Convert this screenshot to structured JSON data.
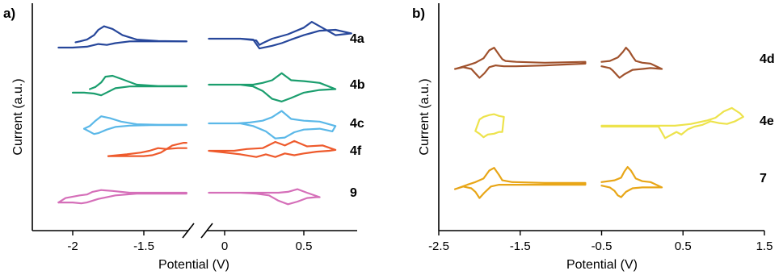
{
  "chart_data": [
    {
      "panel_label": "a)",
      "type": "line",
      "xlabel": "Potential (V)",
      "ylabel": "Current (a.u.)",
      "x_ticks": [
        "-2",
        "-1.5",
        "0",
        "0.5"
      ],
      "x_tick_values": [
        -2,
        -1.5,
        0,
        0.5
      ],
      "xlim": [
        -2.3,
        0.8
      ],
      "broken_axis": [
        -1.2,
        -0.1
      ],
      "series": [
        {
          "name": "4a",
          "color": "#27479b",
          "cathodic": {
            "x": [
              -1.98,
              -1.95,
              -1.9,
              -1.85,
              -1.82,
              -1.78,
              -1.72,
              -1.65,
              -1.55,
              -1.4,
              -1.2
            ],
            "y": [
              0.08,
              0.06,
              0.02,
              -0.08,
              -0.2,
              -0.28,
              -0.22,
              -0.08,
              0.02,
              0.05,
              0.06
            ]
          },
          "anodic": {
            "x": [
              -2.1,
              -2.0,
              -1.9,
              -1.82,
              -1.76,
              -1.7,
              -1.6,
              -1.45,
              -1.2
            ],
            "y": [
              0.2,
              0.2,
              0.18,
              0.12,
              0.14,
              0.1,
              0.06,
              0.06,
              0.06
            ]
          },
          "right": {
            "x": [
              -0.1,
              0.1,
              0.18,
              0.22,
              0.3,
              0.36,
              0.42,
              0.5,
              0.6,
              0.7,
              0.8,
              0.7,
              0.6,
              0.55,
              0.5,
              0.4,
              0.3,
              0.24,
              0.22,
              0.2,
              0.1,
              -0.1
            ],
            "y": [
              0.0,
              0.0,
              0.02,
              0.22,
              0.16,
              0.1,
              0.02,
              -0.08,
              -0.18,
              -0.2,
              -0.12,
              -0.08,
              -0.28,
              -0.38,
              -0.25,
              -0.1,
              0.0,
              0.1,
              0.14,
              0.04,
              0.0,
              0.0
            ]
          }
        },
        {
          "name": "4b",
          "color": "#1b9e6e",
          "cathodic": {
            "x": [
              -1.88,
              -1.84,
              -1.8,
              -1.77,
              -1.72,
              -1.65,
              -1.55,
              -1.4,
              -1.2
            ],
            "y": [
              0.1,
              0.05,
              -0.05,
              -0.18,
              -0.2,
              -0.12,
              0.0,
              0.03,
              0.03
            ]
          },
          "anodic": {
            "x": [
              -2.0,
              -1.92,
              -1.85,
              -1.8,
              -1.75,
              -1.7,
              -1.6,
              -1.45,
              -1.2
            ],
            "y": [
              0.18,
              0.18,
              0.2,
              0.24,
              0.16,
              0.08,
              0.04,
              0.04,
              0.04
            ]
          },
          "right": {
            "x": [
              -0.1,
              0.1,
              0.18,
              0.24,
              0.3,
              0.36,
              0.42,
              0.5,
              0.6,
              0.7,
              0.6,
              0.5,
              0.42,
              0.36,
              0.3,
              0.24,
              0.18,
              0.1,
              -0.1
            ],
            "y": [
              0.0,
              0.0,
              0.04,
              0.14,
              0.32,
              0.38,
              0.3,
              0.18,
              0.12,
              0.1,
              -0.04,
              -0.08,
              -0.1,
              -0.26,
              -0.1,
              -0.04,
              0.0,
              0.0,
              0.0
            ]
          }
        },
        {
          "name": "4c",
          "color": "#5bb8e8",
          "cathodic": {
            "x": [
              -1.92,
              -1.88,
              -1.84,
              -1.8,
              -1.74,
              -1.66,
              -1.55,
              -1.4,
              -1.2
            ],
            "y": [
              0.12,
              0.06,
              -0.06,
              -0.16,
              -0.12,
              -0.04,
              0.02,
              0.03,
              0.03
            ]
          },
          "anodic": {
            "x": [
              -1.92,
              -1.85,
              -1.82,
              -1.76,
              -1.7,
              -1.6,
              -1.45,
              -1.2
            ],
            "y": [
              0.12,
              0.24,
              0.22,
              0.14,
              0.08,
              0.05,
              0.04,
              0.04
            ]
          },
          "right": {
            "x": [
              -0.1,
              0.1,
              0.18,
              0.26,
              0.32,
              0.38,
              0.44,
              0.5,
              0.6,
              0.68,
              0.7,
              0.6,
              0.5,
              0.42,
              0.36,
              0.3,
              0.24,
              0.16,
              0.08,
              -0.1
            ],
            "y": [
              0.0,
              0.0,
              0.06,
              0.18,
              0.34,
              0.32,
              0.2,
              0.14,
              0.12,
              0.18,
              0.06,
              -0.04,
              -0.06,
              -0.1,
              -0.28,
              -0.14,
              -0.06,
              -0.02,
              0.0,
              0.0
            ]
          }
        },
        {
          "name": "4f",
          "color": "#ee5a2c",
          "cathodic": {
            "x": [
              -1.75,
              -1.6,
              -1.5,
              -1.44,
              -1.38,
              -1.3,
              -1.22,
              -1.2
            ],
            "y": [
              0.12,
              0.12,
              0.12,
              0.1,
              0.04,
              -0.12,
              -0.18,
              -0.18
            ]
          },
          "anodic": {
            "x": [
              -1.75,
              -1.62,
              -1.52,
              -1.46,
              -1.4,
              -1.34,
              -1.26,
              -1.2
            ],
            "y": [
              0.12,
              0.08,
              0.04,
              0.0,
              -0.06,
              -0.04,
              -0.06,
              -0.06
            ]
          },
          "right": {
            "x": [
              -0.1,
              0.0,
              0.1,
              0.2,
              0.26,
              0.32,
              0.38,
              0.44,
              0.5,
              0.58,
              0.66,
              0.7,
              0.62,
              0.52,
              0.44,
              0.38,
              0.32,
              0.24,
              0.14,
              0.06,
              -0.1
            ],
            "y": [
              0.0,
              0.04,
              0.08,
              0.14,
              0.08,
              0.14,
              0.06,
              0.1,
              0.06,
              0.02,
              0.0,
              -0.02,
              -0.12,
              -0.1,
              -0.22,
              -0.12,
              -0.2,
              -0.06,
              -0.04,
              0.0,
              0.0
            ]
          }
        },
        {
          "name": "9",
          "color": "#d56fb9",
          "cathodic": {
            "x": [
              -2.1,
              -2.05,
              -1.95,
              -1.9,
              -1.86,
              -1.8,
              -1.72,
              -1.6,
              -1.45,
              -1.2
            ],
            "y": [
              0.22,
              0.12,
              0.06,
              0.04,
              -0.02,
              -0.06,
              -0.04,
              0.0,
              0.0,
              0.0
            ]
          },
          "anodic": {
            "x": [
              -2.1,
              -2.0,
              -1.94,
              -1.9,
              -1.82,
              -1.7,
              -1.55,
              -1.2
            ],
            "y": [
              0.22,
              0.22,
              0.24,
              0.22,
              0.14,
              0.06,
              0.02,
              0.02
            ]
          },
          "right": {
            "x": [
              -0.1,
              0.1,
              0.2,
              0.28,
              0.34,
              0.4,
              0.46,
              0.52,
              0.58,
              0.6,
              0.52,
              0.46,
              0.4,
              0.34,
              0.28,
              0.2,
              0.1,
              -0.1
            ],
            "y": [
              0.0,
              0.0,
              0.02,
              0.06,
              0.18,
              0.26,
              0.2,
              0.12,
              0.1,
              0.1,
              0.0,
              -0.08,
              -0.02,
              0.0,
              0.0,
              0.0,
              0.0,
              0.0
            ]
          }
        }
      ]
    },
    {
      "panel_label": "b)",
      "type": "line",
      "xlabel": "Potential (V)",
      "ylabel": "Current (a.u.)",
      "x_ticks": [
        "-2.5",
        "-1.5",
        "-0.5",
        "0.5",
        "1.5"
      ],
      "x_tick_values": [
        -2.5,
        -1.5,
        -0.5,
        0.5,
        1.5
      ],
      "xlim": [
        -2.5,
        1.5
      ],
      "series": [
        {
          "name": "4d",
          "color": "#a0522d",
          "left": {
            "x": [
              -2.3,
              -2.2,
              -2.1,
              -2.05,
              -2.0,
              -1.94,
              -1.88,
              -1.8,
              -1.75,
              -1.7,
              -1.55,
              -1.2,
              -0.7,
              -0.7,
              -1.2,
              -1.55,
              -1.68,
              -1.72,
              -1.76,
              -1.82,
              -1.88,
              -1.95,
              -2.05,
              -2.15,
              -2.3
            ],
            "y": [
              0.1,
              0.06,
              0.1,
              0.2,
              0.3,
              0.2,
              0.06,
              0.02,
              0.03,
              0.04,
              0.04,
              0.02,
              -0.02,
              -0.06,
              -0.04,
              -0.06,
              -0.08,
              -0.12,
              -0.22,
              -0.38,
              -0.32,
              -0.14,
              -0.04,
              0.02,
              0.1
            ]
          },
          "right": {
            "x": [
              -0.5,
              -0.4,
              -0.36,
              -0.32,
              -0.28,
              -0.22,
              -0.12,
              0.0,
              0.1,
              0.24,
              0.1,
              0.0,
              -0.08,
              -0.12,
              -0.16,
              -0.2,
              -0.24,
              -0.3,
              -0.4,
              -0.5
            ],
            "y": [
              0.04,
              0.08,
              0.14,
              0.22,
              0.3,
              0.22,
              0.12,
              0.1,
              0.08,
              0.1,
              -0.02,
              -0.04,
              -0.08,
              -0.18,
              -0.3,
              -0.38,
              -0.28,
              -0.16,
              -0.08,
              -0.06
            ]
          }
        },
        {
          "name": "4e",
          "color": "#ede34c",
          "left": {
            "x": [
              -2.05,
              -2.0,
              -1.95,
              -1.9,
              -1.82,
              -1.76,
              -1.72,
              -1.7,
              -1.76,
              -1.82,
              -1.88,
              -1.95,
              -2.0,
              -2.05
            ],
            "y": [
              0.1,
              0.16,
              0.24,
              0.18,
              0.16,
              0.12,
              0.12,
              -0.22,
              -0.24,
              -0.28,
              -0.26,
              -0.22,
              -0.16,
              0.1
            ]
          },
          "right": {
            "x": [
              -0.5,
              -0.1,
              0.2,
              0.28,
              0.34,
              0.42,
              0.48,
              0.56,
              0.64,
              0.74,
              0.84,
              0.94,
              1.04,
              1.14,
              1.24,
              1.2,
              1.1,
              1.0,
              0.9,
              0.8,
              0.7,
              0.6,
              0.5,
              0.4,
              0.2,
              -0.5
            ],
            "y": [
              0.0,
              0.0,
              0.0,
              0.26,
              0.2,
              0.12,
              0.18,
              0.06,
              0.0,
              -0.04,
              -0.12,
              -0.08,
              -0.06,
              -0.12,
              -0.22,
              -0.3,
              -0.42,
              -0.34,
              -0.2,
              -0.14,
              -0.1,
              -0.06,
              -0.04,
              -0.02,
              -0.02,
              -0.02
            ]
          }
        },
        {
          "name": "7",
          "color": "#e8a617",
          "left": {
            "x": [
              -2.3,
              -2.2,
              -2.1,
              -2.05,
              -2.0,
              -1.94,
              -1.86,
              -1.76,
              -1.7,
              -1.6,
              -1.2,
              -0.7,
              -0.7,
              -1.2,
              -1.6,
              -1.72,
              -1.76,
              -1.82,
              -1.88,
              -1.95,
              -2.05,
              -2.15,
              -2.3
            ],
            "y": [
              0.12,
              0.06,
              0.1,
              0.18,
              0.32,
              0.2,
              0.06,
              0.02,
              0.02,
              0.02,
              0.02,
              0.02,
              -0.02,
              -0.02,
              -0.04,
              -0.08,
              -0.2,
              -0.36,
              -0.3,
              -0.12,
              -0.04,
              0.02,
              0.12
            ]
          },
          "right": {
            "x": [
              -0.5,
              -0.4,
              -0.34,
              -0.3,
              -0.26,
              -0.2,
              -0.12,
              0.0,
              0.24,
              0.1,
              0.0,
              -0.08,
              -0.14,
              -0.18,
              -0.22,
              -0.26,
              -0.34,
              -0.5
            ],
            "y": [
              0.04,
              0.08,
              0.16,
              0.26,
              0.3,
              0.18,
              0.1,
              0.08,
              0.08,
              -0.04,
              -0.06,
              -0.12,
              -0.3,
              -0.38,
              -0.28,
              -0.14,
              -0.08,
              -0.04
            ]
          }
        }
      ]
    }
  ]
}
